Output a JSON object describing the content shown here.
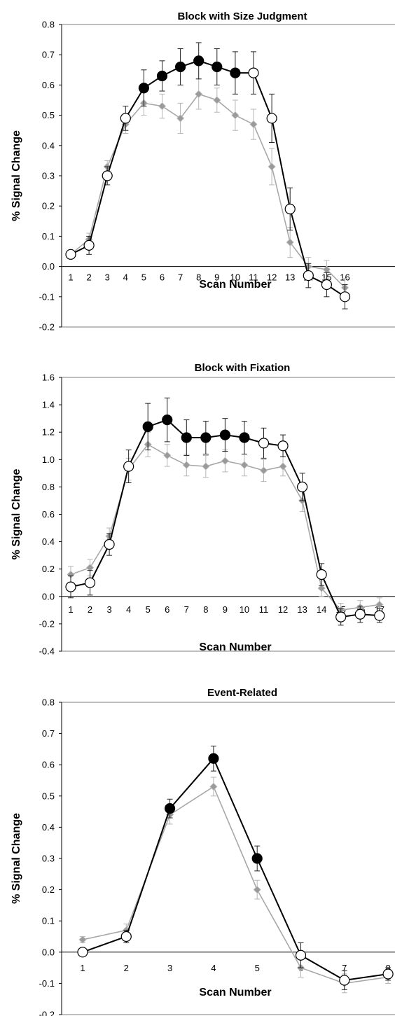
{
  "colors": {
    "sig_series": "#000000",
    "nonsig_fill": "#ffffff",
    "gray_series": "#a8a8a8",
    "gray_marker": "#9a9a9a",
    "background": "#ffffff"
  },
  "chart_data": [
    {
      "type": "line",
      "title": "Block with Size Judgment",
      "xlabel": "Scan Number",
      "ylabel": "% Signal Change",
      "ylim": [
        -0.2,
        0.8
      ],
      "yticks": [
        "0.8",
        "0.7",
        "0.6",
        "0.5",
        "0.4",
        "0.3",
        "0.2",
        "0.1",
        "0.0",
        "-0.1",
        "-0.2"
      ],
      "ytick_values": [
        0.8,
        0.7,
        0.6,
        0.5,
        0.4,
        0.3,
        0.2,
        0.1,
        0.0,
        -0.1,
        -0.2
      ],
      "x": [
        1,
        2,
        3,
        4,
        5,
        6,
        7,
        8,
        9,
        10,
        11,
        12,
        13,
        14,
        15,
        16
      ],
      "xticks": [
        "1",
        "2",
        "3",
        "4",
        "5",
        "6",
        "7",
        "8",
        "9",
        "10",
        "11",
        "12",
        "13",
        "14",
        "15",
        "16"
      ],
      "series": [
        {
          "values": [
            0.04,
            0.07,
            0.3,
            0.49,
            0.59,
            0.63,
            0.66,
            0.68,
            0.66,
            0.64,
            0.64,
            0.49,
            0.19,
            -0.03,
            -0.06,
            -0.1
          ],
          "errors": [
            0.01,
            0.03,
            0.03,
            0.04,
            0.06,
            0.05,
            0.06,
            0.06,
            0.06,
            0.07,
            0.07,
            0.08,
            0.07,
            0.04,
            0.04,
            0.04
          ],
          "filled": [
            false,
            false,
            false,
            false,
            true,
            true,
            true,
            true,
            true,
            true,
            false,
            false,
            false,
            false,
            false,
            false
          ]
        },
        {
          "values": [
            0.04,
            0.09,
            0.33,
            0.47,
            0.54,
            0.53,
            0.49,
            0.57,
            0.55,
            0.5,
            0.47,
            0.33,
            0.08,
            0.0,
            -0.01,
            -0.07
          ],
          "errors": [
            0.01,
            0.02,
            0.02,
            0.03,
            0.04,
            0.04,
            0.05,
            0.05,
            0.04,
            0.05,
            0.05,
            0.06,
            0.05,
            0.03,
            0.03,
            0.03
          ]
        }
      ],
      "grid": false
    },
    {
      "type": "line",
      "title": "Block with Fixation",
      "xlabel": "Scan Number",
      "ylabel": "% Signal Change",
      "ylim": [
        -0.4,
        1.6
      ],
      "yticks": [
        "1.6",
        "1.4",
        "1.2",
        "1.0",
        "0.8",
        "0.6",
        "0.4",
        "0.2",
        "0.0",
        "-0.2",
        "-0.4"
      ],
      "ytick_values": [
        1.6,
        1.4,
        1.2,
        1.0,
        0.8,
        0.6,
        0.4,
        0.2,
        0.0,
        -0.2,
        -0.4
      ],
      "x": [
        1,
        2,
        3,
        4,
        5,
        6,
        7,
        8,
        9,
        10,
        11,
        12,
        13,
        14,
        15,
        16,
        17
      ],
      "xticks": [
        "1",
        "2",
        "3",
        "4",
        "5",
        "6",
        "7",
        "8",
        "9",
        "10",
        "11",
        "12",
        "13",
        "14",
        "15",
        "16",
        "17"
      ],
      "series": [
        {
          "values": [
            0.07,
            0.1,
            0.38,
            0.95,
            1.24,
            1.29,
            1.16,
            1.16,
            1.18,
            1.16,
            1.12,
            1.1,
            0.8,
            0.16,
            -0.15,
            -0.13,
            -0.14
          ],
          "errors": [
            0.08,
            0.09,
            0.08,
            0.12,
            0.17,
            0.16,
            0.13,
            0.12,
            0.12,
            0.12,
            0.11,
            0.08,
            0.1,
            0.08,
            0.06,
            0.06,
            0.05
          ],
          "filled": [
            false,
            false,
            false,
            false,
            true,
            true,
            true,
            true,
            true,
            true,
            false,
            false,
            false,
            false,
            false,
            false,
            false
          ]
        },
        {
          "values": [
            0.16,
            0.21,
            0.44,
            0.93,
            1.11,
            1.03,
            0.96,
            0.95,
            0.99,
            0.96,
            0.92,
            0.95,
            0.7,
            0.06,
            -0.1,
            -0.08,
            -0.06
          ],
          "errors": [
            0.06,
            0.06,
            0.06,
            0.08,
            0.09,
            0.08,
            0.08,
            0.08,
            0.08,
            0.08,
            0.08,
            0.07,
            0.08,
            0.06,
            0.05,
            0.05,
            0.05
          ]
        }
      ],
      "grid": false
    },
    {
      "type": "line",
      "title": "Event-Related",
      "xlabel": "Scan Number",
      "ylabel": "% Signal Change",
      "ylim": [
        -0.2,
        0.8
      ],
      "yticks": [
        "0.8",
        "0.7",
        "0.6",
        "0.5",
        "0.4",
        "0.3",
        "0.2",
        "0.1",
        "0.0",
        "-0.1",
        "-0.2"
      ],
      "ytick_values": [
        0.8,
        0.7,
        0.6,
        0.5,
        0.4,
        0.3,
        0.2,
        0.1,
        0.0,
        -0.1,
        -0.2
      ],
      "x": [
        1,
        2,
        3,
        4,
        5,
        6,
        7,
        8
      ],
      "xticks": [
        "1",
        "2",
        "3",
        "4",
        "5",
        "6",
        "7",
        "8"
      ],
      "series": [
        {
          "values": [
            0.0,
            0.05,
            0.46,
            0.62,
            0.3,
            -0.01,
            -0.09,
            -0.07
          ],
          "errors": [
            0.01,
            0.02,
            0.03,
            0.04,
            0.04,
            0.04,
            0.03,
            0.02
          ],
          "filled": [
            false,
            false,
            true,
            true,
            true,
            false,
            false,
            false
          ]
        },
        {
          "values": [
            0.04,
            0.07,
            0.44,
            0.53,
            0.2,
            -0.05,
            -0.1,
            -0.08
          ],
          "errors": [
            0.01,
            0.02,
            0.03,
            0.03,
            0.03,
            0.03,
            0.03,
            0.02
          ]
        }
      ],
      "grid": false
    }
  ]
}
